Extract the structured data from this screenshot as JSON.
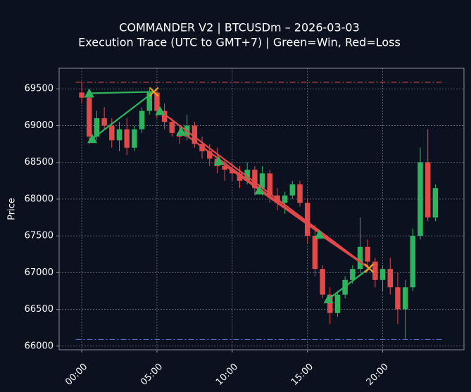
{
  "chart_data": {
    "type": "candlestick",
    "title": "COMMANDER V2 | BTCUSDm – 2026-03-03",
    "subtitle": "Execution Trace (UTC to GMT+7) | Green=Win, Red=Loss",
    "ylabel": "Price",
    "x": [
      0,
      0.5,
      1,
      1.5,
      2,
      2.5,
      3,
      3.5,
      4,
      4.5,
      5,
      5.5,
      6,
      6.5,
      7,
      7.5,
      8,
      8.5,
      9,
      9.5,
      10,
      10.5,
      11,
      11.5,
      12,
      12.5,
      13,
      13.5,
      14,
      14.5,
      15,
      15.5,
      16,
      16.5,
      17,
      17.5,
      18,
      18.5,
      19,
      19.5,
      20,
      20.5,
      21,
      21.5,
      22,
      22.5,
      23,
      23.5
    ],
    "open": [
      69450,
      69380,
      68850,
      69100,
      69000,
      68800,
      68950,
      68700,
      68950,
      69200,
      69450,
      69200,
      69050,
      68900,
      68850,
      69000,
      68750,
      68650,
      68550,
      68450,
      68400,
      68350,
      68250,
      68400,
      68150,
      68350,
      68050,
      67950,
      68050,
      68200,
      67950,
      67500,
      67050,
      66700,
      66450,
      66700,
      66900,
      67050,
      67350,
      67150,
      66900,
      67050,
      66800,
      66500,
      66800,
      67500,
      68500,
      67750
    ],
    "high": [
      69600,
      69450,
      69200,
      69250,
      69100,
      69050,
      69100,
      69000,
      69250,
      69500,
      69500,
      69300,
      69100,
      69000,
      69150,
      69050,
      68850,
      68750,
      68700,
      68550,
      68500,
      68450,
      68500,
      68450,
      68450,
      68400,
      68150,
      68100,
      68250,
      68250,
      68000,
      67650,
      67100,
      66800,
      66750,
      66950,
      67100,
      67750,
      67450,
      67200,
      67100,
      67200,
      67000,
      66900,
      67600,
      68700,
      68950,
      68200
    ],
    "low": [
      69300,
      68750,
      68800,
      68950,
      68700,
      68650,
      68600,
      68650,
      68900,
      69150,
      69100,
      68950,
      68850,
      68750,
      68800,
      68700,
      68550,
      68450,
      68350,
      68250,
      68250,
      68150,
      68200,
      68050,
      68050,
      67950,
      67850,
      67800,
      68000,
      67900,
      67400,
      66950,
      66650,
      66300,
      66400,
      66650,
      66850,
      67000,
      67050,
      66800,
      66750,
      66700,
      66300,
      66100,
      66750,
      67450,
      67700,
      67700
    ],
    "close": [
      69380,
      68850,
      69100,
      69000,
      68800,
      68950,
      68700,
      68950,
      69200,
      69450,
      69200,
      69050,
      68900,
      68850,
      69000,
      68750,
      68650,
      68550,
      68450,
      68400,
      68350,
      68250,
      68400,
      68150,
      68350,
      68050,
      67950,
      68050,
      68200,
      67950,
      67500,
      67050,
      66700,
      66450,
      66700,
      66900,
      67050,
      67350,
      67150,
      66900,
      67050,
      66800,
      66500,
      66800,
      67500,
      68500,
      67750,
      68150
    ],
    "up_color": "#2fb35f",
    "down_color": "#e04a4a",
    "trades": [
      {
        "entry_x": 0.5,
        "entry_price": 69440,
        "exit_x": 4.8,
        "exit_price": 69460,
        "color": "#2fb35f"
      },
      {
        "entry_x": 0.7,
        "entry_price": 68820,
        "exit_x": 4.8,
        "exit_price": 69460,
        "color": "#2fb35f"
      },
      {
        "entry_x": 5.2,
        "entry_price": 69200,
        "exit_x": 19.1,
        "exit_price": 67060,
        "color": "#e04a4a"
      },
      {
        "entry_x": 6.6,
        "entry_price": 68920,
        "exit_x": 19.1,
        "exit_price": 67060,
        "color": "#e04a4a"
      },
      {
        "entry_x": 9.1,
        "entry_price": 68520,
        "exit_x": 19.1,
        "exit_price": 67060,
        "color": "#e04a4a"
      },
      {
        "entry_x": 11.8,
        "entry_price": 68120,
        "exit_x": 19.1,
        "exit_price": 67060,
        "color": "#e04a4a"
      },
      {
        "entry_x": 15.8,
        "entry_price": 67520,
        "exit_x": 19.1,
        "exit_price": 67060,
        "color": "#e04a4a"
      },
      {
        "entry_x": 16.4,
        "entry_price": 66640,
        "exit_x": 19.1,
        "exit_price": 67060,
        "color": "#2fb35f"
      }
    ],
    "entry_color": "#2fb35f",
    "exit_color": "#f0a020",
    "levels": [
      {
        "value": 69590,
        "color": "#e05a5a"
      },
      {
        "value": 66090,
        "color": "#4a7ad8"
      }
    ],
    "xlim": [
      -1.5,
      25.4
    ],
    "ylim": [
      65950,
      69780
    ],
    "xticks": [
      {
        "value": 0,
        "label": "00:00"
      },
      {
        "value": 5,
        "label": "05:00"
      },
      {
        "value": 10,
        "label": "10:00"
      },
      {
        "value": 15,
        "label": "15:00"
      },
      {
        "value": 20,
        "label": "20:00"
      }
    ],
    "yticks": [
      66000,
      66500,
      67000,
      67500,
      68000,
      68500,
      69000,
      69500
    ],
    "grid": true
  }
}
